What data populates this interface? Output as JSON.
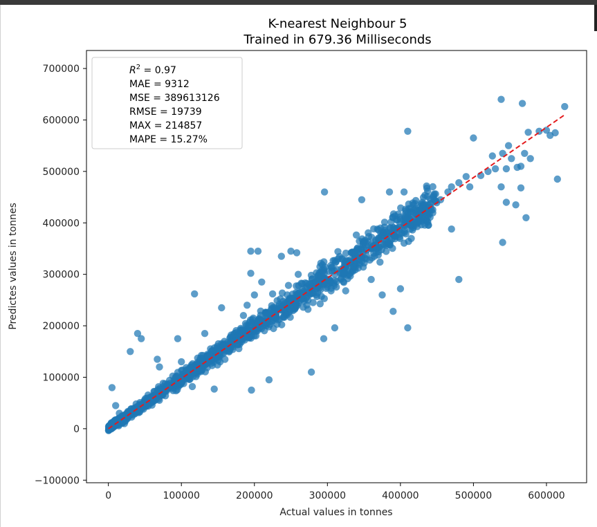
{
  "chart_data": {
    "type": "scatter",
    "title": "K-nearest Neighbour 5",
    "subtitle": "Trained in 679.36 Milliseconds",
    "xlabel": "Actual values in tonnes",
    "ylabel": "Predictes values in tonnes",
    "xlim": [
      -30000,
      655000
    ],
    "ylim": [
      -105000,
      735000
    ],
    "xticks": [
      0,
      100000,
      200000,
      300000,
      400000,
      500000,
      600000
    ],
    "xtick_labels": [
      "0",
      "100000",
      "200000",
      "300000",
      "400000",
      "500000",
      "600000"
    ],
    "yticks": [
      -100000,
      0,
      100000,
      200000,
      300000,
      400000,
      500000,
      600000,
      700000
    ],
    "ytick_labels": [
      "−100000",
      "0",
      "100000",
      "200000",
      "300000",
      "400000",
      "500000",
      "600000",
      "700000"
    ],
    "grid": false,
    "legend_position": "top-left",
    "metrics": {
      "r2_label": "R",
      "r2_value": " = 0.97",
      "mae": "MAE = 9312",
      "mse": "MSE = 389613126",
      "rmse": "RMSE = 19739",
      "max": "MAX = 214857",
      "mape": "MAPE = 15.27%"
    },
    "ideal_line": {
      "x": [
        0,
        625000
      ],
      "y": [
        0,
        610000
      ],
      "color": "#e41a1c",
      "style": "dashed"
    },
    "point_color": "#1f77b4",
    "cluster": {
      "x_min": 0,
      "x_max": 450000,
      "count": 1300,
      "relative_spread": 0.07
    },
    "points": [
      [
        538000,
        640000
      ],
      [
        567000,
        632000
      ],
      [
        625000,
        626000
      ],
      [
        410000,
        578000
      ],
      [
        500000,
        565000
      ],
      [
        548000,
        550000
      ],
      [
        575000,
        576000
      ],
      [
        590000,
        578000
      ],
      [
        600000,
        580000
      ],
      [
        605000,
        570000
      ],
      [
        612000,
        575000
      ],
      [
        526000,
        530000
      ],
      [
        540000,
        535000
      ],
      [
        552000,
        525000
      ],
      [
        565000,
        510000
      ],
      [
        570000,
        535000
      ],
      [
        578000,
        525000
      ],
      [
        560000,
        508000
      ],
      [
        545000,
        505000
      ],
      [
        530000,
        505000
      ],
      [
        520000,
        500000
      ],
      [
        510000,
        492000
      ],
      [
        490000,
        490000
      ],
      [
        495000,
        470000
      ],
      [
        480000,
        478000
      ],
      [
        470000,
        470000
      ],
      [
        465000,
        460000
      ],
      [
        455000,
        445000
      ],
      [
        445000,
        450000
      ],
      [
        430000,
        440000
      ],
      [
        420000,
        428000
      ],
      [
        405000,
        460000
      ],
      [
        385000,
        460000
      ],
      [
        347000,
        445000
      ],
      [
        296000,
        460000
      ],
      [
        565000,
        468000
      ],
      [
        538000,
        470000
      ],
      [
        545000,
        440000
      ],
      [
        558000,
        435000
      ],
      [
        572000,
        410000
      ],
      [
        615000,
        485000
      ],
      [
        470000,
        388000
      ],
      [
        540000,
        362000
      ],
      [
        480000,
        290000
      ],
      [
        410000,
        196000
      ],
      [
        390000,
        228000
      ],
      [
        400000,
        272000
      ],
      [
        375000,
        260000
      ],
      [
        360000,
        290000
      ],
      [
        330000,
        300000
      ],
      [
        325000,
        268000
      ],
      [
        305000,
        268000
      ],
      [
        310000,
        196000
      ],
      [
        295000,
        175000
      ],
      [
        278000,
        110000
      ],
      [
        196000,
        75000
      ],
      [
        220000,
        95000
      ],
      [
        145000,
        77000
      ],
      [
        115000,
        82000
      ],
      [
        40000,
        185000
      ],
      [
        118000,
        262000
      ],
      [
        195000,
        345000
      ],
      [
        205000,
        345000
      ],
      [
        195000,
        302000
      ],
      [
        250000,
        345000
      ],
      [
        258000,
        342000
      ],
      [
        237000,
        335000
      ],
      [
        260000,
        300000
      ],
      [
        245000,
        260000
      ],
      [
        225000,
        262000
      ],
      [
        210000,
        285000
      ],
      [
        200000,
        260000
      ],
      [
        190000,
        240000
      ],
      [
        185000,
        220000
      ],
      [
        155000,
        235000
      ],
      [
        132000,
        185000
      ],
      [
        95000,
        175000
      ],
      [
        67000,
        135000
      ],
      [
        45000,
        175000
      ],
      [
        30000,
        150000
      ],
      [
        70000,
        120000
      ],
      [
        100000,
        130000
      ],
      [
        5000,
        80000
      ],
      [
        15000,
        30000
      ],
      [
        22000,
        10000
      ],
      [
        8000,
        15000
      ],
      [
        3000,
        5000
      ],
      [
        10000,
        45000
      ]
    ]
  }
}
